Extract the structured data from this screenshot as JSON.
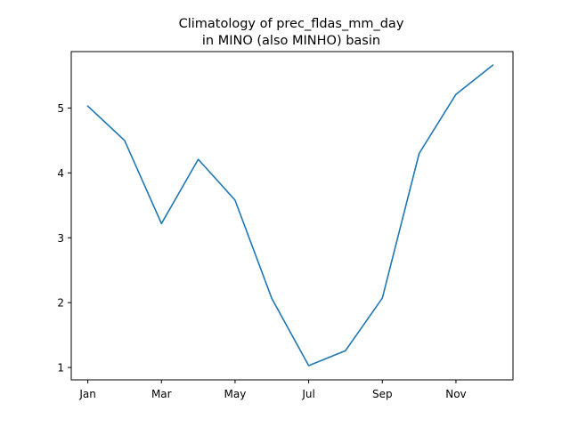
{
  "chart_data": {
    "type": "line",
    "title": "Climatology of prec_fldas_mm_day",
    "subtitle": "in MINO (also MINHO) basin",
    "xlabel": "",
    "ylabel": "",
    "x": [
      1,
      2,
      3,
      4,
      5,
      6,
      7,
      8,
      9,
      10,
      11,
      12
    ],
    "x_tick_values": [
      1,
      3,
      5,
      7,
      9,
      11
    ],
    "x_tick_labels": [
      "Jan",
      "Mar",
      "May",
      "Jul",
      "Sep",
      "Nov"
    ],
    "xlim": [
      0.55,
      12.55
    ],
    "y_tick_values": [
      1,
      2,
      3,
      4,
      5
    ],
    "y_tick_labels": [
      "1",
      "2",
      "3",
      "4",
      "5"
    ],
    "ylim": [
      0.81,
      5.87
    ],
    "grid": false,
    "series": [
      {
        "values": [
          5.03,
          4.5,
          3.22,
          4.21,
          3.58,
          2.06,
          1.03,
          1.26,
          2.07,
          4.3,
          5.21,
          5.66
        ],
        "color": "#1f77b4"
      }
    ]
  }
}
